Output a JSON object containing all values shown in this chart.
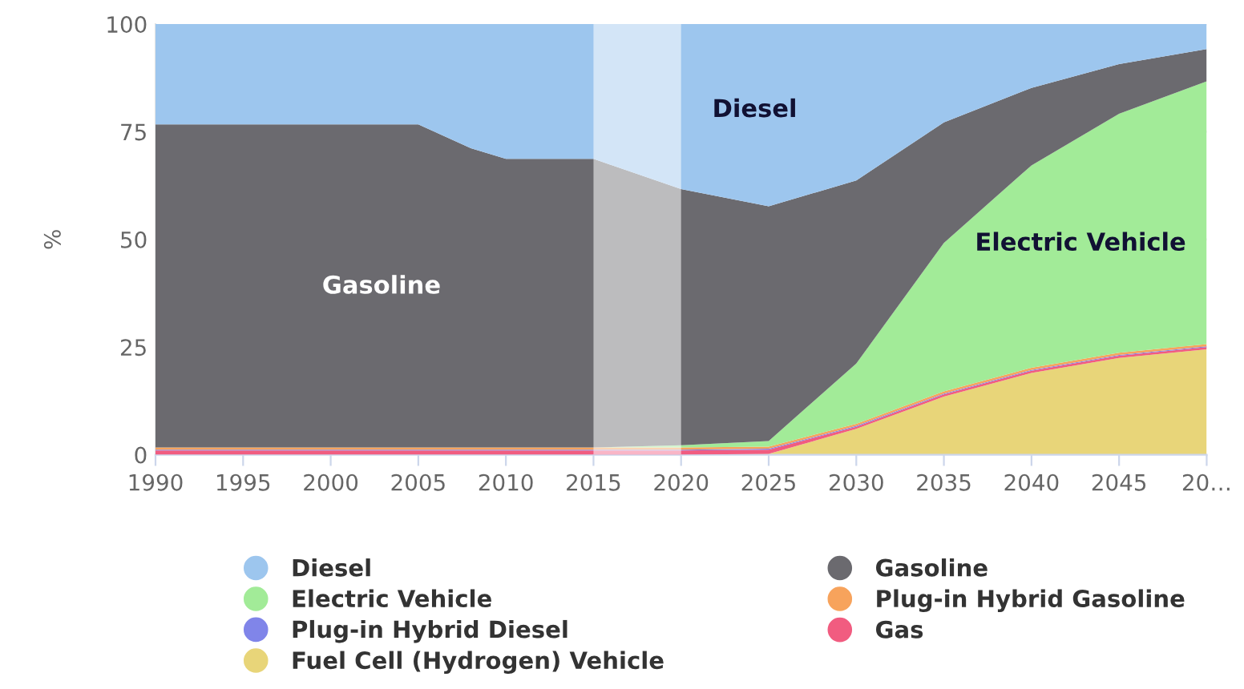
{
  "chart_data": {
    "type": "area",
    "stacked": true,
    "ylabel": "%",
    "x": [
      1990,
      1995,
      2000,
      2005,
      2008,
      2010,
      2015,
      2020,
      2025,
      2030,
      2035,
      2040,
      2045,
      2050
    ],
    "series": [
      {
        "name": "Fuel Cell (Hydrogen) Vehicle",
        "color": "#e8d579",
        "values": [
          0,
          0,
          0,
          0,
          0,
          0,
          0,
          0,
          0.2,
          6,
          13.5,
          19,
          22.5,
          24.5
        ]
      },
      {
        "name": "Gas",
        "color": "#f15c80",
        "values": [
          1,
          1,
          1,
          1,
          1,
          1,
          1,
          1,
          1,
          0.5,
          0.5,
          0.5,
          0.5,
          0.5
        ]
      },
      {
        "name": "Plug-in Hybrid Diesel",
        "color": "#8085e9",
        "values": [
          0.2,
          0.2,
          0.2,
          0.2,
          0.2,
          0.2,
          0.2,
          0.2,
          0.2,
          0.2,
          0.2,
          0.2,
          0.2,
          0.2
        ]
      },
      {
        "name": "Plug-in Hybrid Gasoline",
        "color": "#f7a35c",
        "values": [
          0.5,
          0.5,
          0.5,
          0.5,
          0.5,
          0.5,
          0.5,
          0.5,
          0.5,
          0.5,
          0.5,
          0.5,
          0.5,
          0.5
        ]
      },
      {
        "name": "Electric Vehicle",
        "color": "#a2eb98",
        "values": [
          0,
          0,
          0,
          0,
          0,
          0,
          0,
          0.5,
          1.3,
          14,
          34.5,
          47,
          55.5,
          61
        ]
      },
      {
        "name": "Gasoline",
        "color": "#6b6a6f",
        "values": [
          75,
          75,
          75,
          75,
          69.5,
          67,
          67,
          59.5,
          54.5,
          42.5,
          28,
          18,
          11.5,
          7.5
        ]
      },
      {
        "name": "Diesel",
        "color": "#9dc6ee",
        "values": [
          23.5,
          23.5,
          23.5,
          23.5,
          29,
          31.5,
          31.5,
          38.5,
          42.5,
          36.5,
          23,
          15,
          9.5,
          6
        ]
      }
    ],
    "annotations": [
      "Diesel",
      "Gasoline",
      "Electric Vehicle"
    ],
    "bands": [
      {
        "axis": "x",
        "from": 2015,
        "to": 2020,
        "color": "#ffffff"
      }
    ],
    "xlim": [
      1990,
      2050
    ],
    "xticks": [
      1990,
      1995,
      2000,
      2005,
      2010,
      2015,
      2020,
      2025,
      2030,
      2035,
      2040,
      2045,
      {
        "value": 2050,
        "label": "20…"
      }
    ],
    "ylim": [
      0,
      100
    ],
    "yticks": [
      0,
      25,
      50,
      75,
      100
    ],
    "grid": "y",
    "legend": "bottom"
  }
}
